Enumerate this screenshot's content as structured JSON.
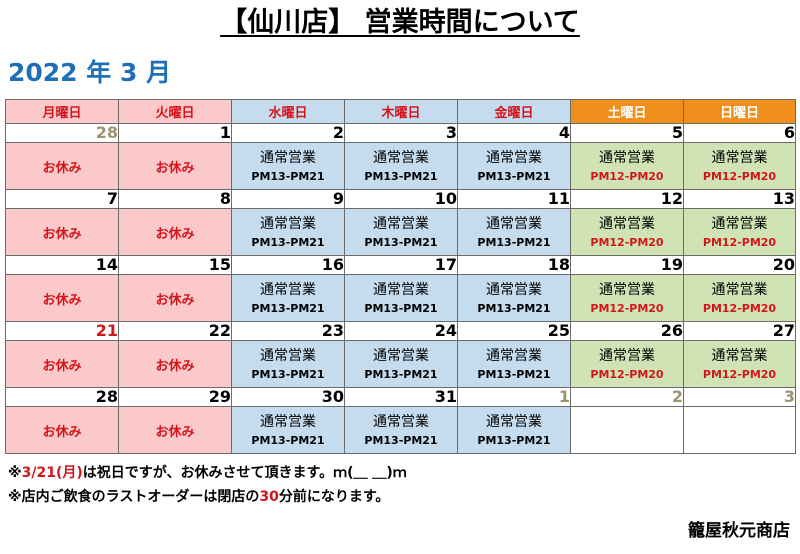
{
  "title": "【仙川店】 営業時間について",
  "month": "2022 年 3 月",
  "weekdays": [
    "月曜日",
    "火曜日",
    "水曜日",
    "木曜日",
    "金曜日",
    "土曜日",
    "日曜日"
  ],
  "labels": {
    "closed": "お休み",
    "open": "通常営業",
    "weekday_hours": "PM13-PM21",
    "weekend_hours": "PM12-PM20"
  },
  "weeks": [
    [
      "28",
      "1",
      "2",
      "3",
      "4",
      "5",
      "6"
    ],
    [
      "7",
      "8",
      "9",
      "10",
      "11",
      "12",
      "13"
    ],
    [
      "14",
      "15",
      "16",
      "17",
      "18",
      "19",
      "20"
    ],
    [
      "21",
      "22",
      "23",
      "24",
      "25",
      "26",
      "27"
    ],
    [
      "28",
      "29",
      "30",
      "31",
      "1",
      "2",
      "3"
    ]
  ],
  "notes": {
    "line1_prefix": "※",
    "line1_date": "3/21(月)",
    "line1_rest": "は祝日ですが、お休みさせて頂きます。ｍ(＿ ＿)ｍ",
    "line2_prefix": "※店内ご飲食のラストオーダーは閉店の",
    "line2_num": "30",
    "line2_suffix": "分前になります。"
  },
  "shop_name": "籠屋秋元商店",
  "colors": {
    "red": "#d4161c",
    "blue_title": "#1f6fb8",
    "closed_bg": "#fbc9c9",
    "weekday_bg": "#c5dcee",
    "weekend_bg": "#cfe3b5",
    "weekend_header": "#f08f1c"
  }
}
